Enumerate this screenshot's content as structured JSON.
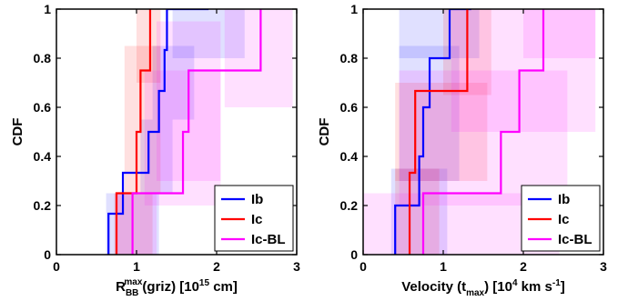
{
  "colors": {
    "Ib": "#0000ff",
    "Ic": "#ff0000",
    "Ic-BL": "#ff00ff"
  },
  "chart_data": [
    {
      "type": "line",
      "step": true,
      "ylabel": "CDF",
      "xlabel_parts": {
        "main": "R",
        "sub": "BB",
        "sup": "max",
        "rest": "(griz) [10",
        "unit_sup": "15",
        "unit_rest": " cm]"
      },
      "xlim": [
        0,
        3
      ],
      "ylim": [
        0,
        1
      ],
      "xticks": [
        "0",
        "1",
        "2",
        "3"
      ],
      "yticks": [
        "0",
        "0.2",
        "0.4",
        "0.6",
        "0.8",
        "1"
      ],
      "legend": {
        "position": "bottom-right",
        "entries": [
          "Ib",
          "Ic",
          "Ic-BL"
        ]
      },
      "series": [
        {
          "name": "Ib",
          "color": "#0000ff",
          "x": [
            0.65,
            0.83,
            1.15,
            1.28,
            1.35,
            1.38,
            1.9
          ],
          "y": [
            0.1667,
            0.3333,
            0.5,
            0.6667,
            0.8333,
            1.0,
            1.0
          ]
        },
        {
          "name": "Ic",
          "color": "#ff0000",
          "x": [
            0.75,
            1.0,
            1.05,
            1.17,
            1.17
          ],
          "y": [
            0.25,
            0.5,
            0.75,
            1.0,
            1.0
          ]
        },
        {
          "name": "Ic-BL",
          "color": "#ff00ff",
          "x": [
            0.95,
            1.58,
            1.65,
            2.55,
            2.55
          ],
          "y": [
            0.25,
            0.5,
            0.75,
            1.0,
            1.0
          ]
        }
      ],
      "bands": [
        {
          "series": "Ib",
          "x": [
            0.62,
            1.28
          ],
          "y": [
            0.0,
            0.25
          ],
          "opacity": 0.12
        },
        {
          "series": "Ib",
          "x": [
            1.05,
            1.45
          ],
          "y": [
            0.25,
            0.55
          ],
          "opacity": 0.12
        },
        {
          "series": "Ib",
          "x": [
            1.2,
            1.72
          ],
          "y": [
            0.55,
            0.85
          ],
          "opacity": 0.12
        },
        {
          "series": "Ib",
          "x": [
            1.45,
            2.35
          ],
          "y": [
            0.8,
            1.0
          ],
          "opacity": 0.12
        },
        {
          "series": "Ic",
          "x": [
            0.72,
            1.2
          ],
          "y": [
            0.0,
            0.25
          ],
          "opacity": 0.12
        },
        {
          "series": "Ic",
          "x": [
            0.85,
            1.3
          ],
          "y": [
            0.25,
            0.85
          ],
          "opacity": 0.12
        },
        {
          "series": "Ic",
          "x": [
            1.0,
            1.3
          ],
          "y": [
            0.7,
            1.0
          ],
          "opacity": 0.12
        },
        {
          "series": "Ic-BL",
          "x": [
            0.75,
            1.25
          ],
          "y": [
            0.0,
            0.25
          ],
          "opacity": 0.12
        },
        {
          "series": "Ic-BL",
          "x": [
            1.1,
            2.05
          ],
          "y": [
            0.2,
            0.75
          ],
          "opacity": 0.12
        },
        {
          "series": "Ic-BL",
          "x": [
            1.25,
            2.05
          ],
          "y": [
            0.3,
            0.95
          ],
          "opacity": 0.12
        },
        {
          "series": "Ic-BL",
          "x": [
            2.1,
            2.95
          ],
          "y": [
            0.6,
            1.0
          ],
          "opacity": 0.12
        }
      ]
    },
    {
      "type": "line",
      "step": true,
      "ylabel": "CDF",
      "xlabel_parts": {
        "main": "Velocity (t",
        "sub": "max",
        "rest": ") [10",
        "unit_sup": "4",
        "unit_rest": " km s",
        "unit_sup2": "-1",
        "unit_end": "]"
      },
      "xlim": [
        0,
        3
      ],
      "ylim": [
        0,
        1
      ],
      "xticks": [
        "0",
        "1",
        "2",
        "3"
      ],
      "yticks": [
        "0",
        "0.2",
        "0.4",
        "0.6",
        "0.8",
        "1"
      ],
      "legend": {
        "position": "bottom-right",
        "entries": [
          "Ib",
          "Ic",
          "Ic-BL"
        ]
      },
      "series": [
        {
          "name": "Ib",
          "color": "#0000ff",
          "x": [
            0.4,
            0.7,
            0.75,
            0.83,
            1.08,
            1.35,
            1.35
          ],
          "y": [
            0.2,
            0.4,
            0.6,
            0.8,
            1.0,
            1.0,
            1.0
          ]
        },
        {
          "name": "Ic",
          "color": "#ff0000",
          "x": [
            0.58,
            0.65,
            1.3,
            1.3
          ],
          "y": [
            0.3333,
            0.6667,
            1.0,
            1.0
          ]
        },
        {
          "name": "Ic-BL",
          "color": "#ff00ff",
          "x": [
            0.75,
            1.72,
            1.95,
            2.25,
            2.25
          ],
          "y": [
            0.25,
            0.5,
            0.75,
            1.0,
            1.0
          ]
        }
      ],
      "bands": [
        {
          "series": "Ib",
          "x": [
            0.35,
            1.05
          ],
          "y": [
            0.0,
            0.35
          ],
          "opacity": 0.12
        },
        {
          "series": "Ib",
          "x": [
            0.45,
            1.2
          ],
          "y": [
            0.3,
            0.85
          ],
          "opacity": 0.12
        },
        {
          "series": "Ib",
          "x": [
            0.45,
            1.45
          ],
          "y": [
            0.8,
            1.0
          ],
          "opacity": 0.12
        },
        {
          "series": "Ic",
          "x": [
            0.4,
            0.95
          ],
          "y": [
            0.0,
            0.35
          ],
          "opacity": 0.12
        },
        {
          "series": "Ic",
          "x": [
            0.4,
            1.55
          ],
          "y": [
            0.3,
            0.7
          ],
          "opacity": 0.12
        },
        {
          "series": "Ic",
          "x": [
            1.0,
            1.6
          ],
          "y": [
            0.65,
            1.0
          ],
          "opacity": 0.12
        },
        {
          "series": "Ic-BL",
          "x": [
            0.0,
            2.45
          ],
          "y": [
            0.0,
            0.25
          ],
          "opacity": 0.12
        },
        {
          "series": "Ic-BL",
          "x": [
            0.45,
            2.55
          ],
          "y": [
            0.2,
            0.75
          ],
          "opacity": 0.12
        },
        {
          "series": "Ic-BL",
          "x": [
            1.1,
            2.9
          ],
          "y": [
            0.5,
            1.0
          ],
          "opacity": 0.12
        },
        {
          "series": "Ic-BL",
          "x": [
            2.0,
            2.9
          ],
          "y": [
            0.8,
            1.0
          ],
          "opacity": 0.12
        }
      ]
    }
  ]
}
